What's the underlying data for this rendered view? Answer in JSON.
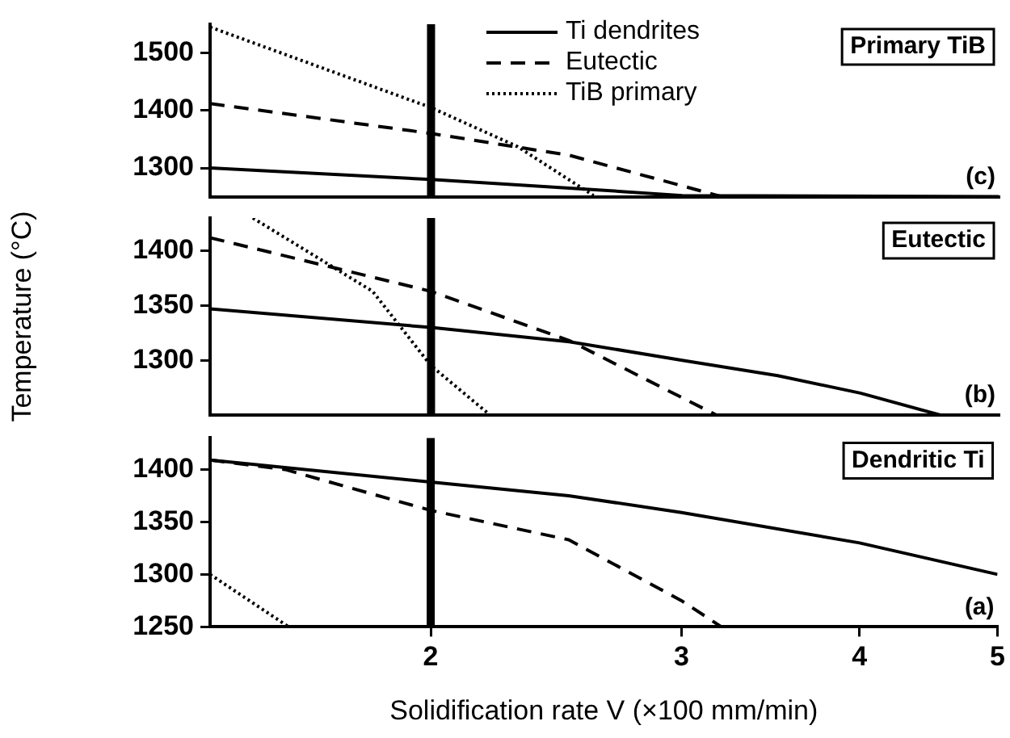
{
  "chart_data": [
    {
      "type": "line",
      "log": "x",
      "xlim": [
        1.4,
        5
      ],
      "xticks": [
        2,
        3,
        4,
        5
      ],
      "ylim": [
        1250,
        1550
      ],
      "yticks": [
        1300,
        1400,
        1500
      ],
      "tick_labels": "y",
      "grid": false,
      "legend": "top right",
      "marker": "none",
      "series": [
        {
          "name": "Ti dendrites",
          "color": "#000000",
          "line_style": "solid",
          "x": [
            1.4,
            2,
            2.5,
            3,
            5
          ],
          "values": [
            1300,
            1280,
            1265,
            1252,
            1250
          ]
        },
        {
          "name": "Eutectic",
          "color": "#000000",
          "line_style": "dashed",
          "x": [
            1.4,
            2,
            2.5,
            3.2
          ],
          "values": [
            1412,
            1360,
            1322,
            1250
          ]
        },
        {
          "name": "TiB primary",
          "color": "#000000",
          "line_style": "dotted",
          "x": [
            1.4,
            2,
            2.3,
            2.6
          ],
          "values": [
            1545,
            1405,
            1337,
            1252
          ]
        }
      ],
      "ref_lines": [
        {
          "axis": "x",
          "value": 2,
          "color": "#000000"
        }
      ],
      "annotations": [
        "Primary TiB",
        "(c)"
      ]
    },
    {
      "type": "line",
      "log": "x",
      "xlim": [
        1.4,
        5
      ],
      "xticks": [
        2,
        3,
        4,
        5
      ],
      "ylim": [
        1250,
        1430
      ],
      "yticks": [
        1300,
        1350,
        1400
      ],
      "tick_labels": "y",
      "grid": false,
      "marker": "none",
      "ylabel": "Temperature (°C)",
      "series": [
        {
          "color": "#000000",
          "line_style": "solid",
          "x": [
            1.4,
            2,
            2.5,
            3,
            3.5,
            4,
            4.55
          ],
          "values": [
            1347,
            1330,
            1317,
            1300,
            1286,
            1270,
            1250
          ]
        },
        {
          "color": "#000000",
          "line_style": "dashed",
          "x": [
            1.4,
            2,
            2.5,
            3.17
          ],
          "values": [
            1412,
            1363,
            1318,
            1250
          ]
        },
        {
          "color": "#000000",
          "line_style": "dotted",
          "x": [
            1.5,
            1.82,
            2,
            2.2
          ],
          "values": [
            1430,
            1363,
            1295,
            1250
          ]
        }
      ],
      "ref_lines": [
        {
          "axis": "x",
          "value": 2,
          "color": "#000000"
        }
      ],
      "annotations": [
        "Eutectic",
        "(b)"
      ]
    },
    {
      "type": "line",
      "log": "x",
      "xlim": [
        1.4,
        5
      ],
      "xticks": [
        2,
        3,
        4,
        5
      ],
      "ylim": [
        1250,
        1430
      ],
      "yticks": [
        1250,
        1300,
        1350,
        1400
      ],
      "grid": false,
      "marker": "none",
      "xlabel": "Solidification rate V (×100 mm/min)",
      "series": [
        {
          "color": "#000000",
          "line_style": "solid",
          "x": [
            1.4,
            2,
            2.5,
            3,
            4,
            5
          ],
          "values": [
            1409,
            1388,
            1375,
            1359,
            1330,
            1300
          ]
        },
        {
          "color": "#000000",
          "line_style": "dashed",
          "x": [
            1.4,
            1.58,
            2,
            2.5,
            3,
            3.2
          ],
          "values": [
            1409,
            1400,
            1361,
            1333,
            1275,
            1250
          ]
        },
        {
          "color": "#000000",
          "line_style": "dotted",
          "x": [
            1.4,
            1.59
          ],
          "values": [
            1300,
            1250
          ]
        }
      ],
      "ref_lines": [
        {
          "axis": "x",
          "value": 2,
          "color": "#000000"
        }
      ],
      "annotations": [
        "Dendritic Ti",
        "(a)"
      ]
    }
  ]
}
